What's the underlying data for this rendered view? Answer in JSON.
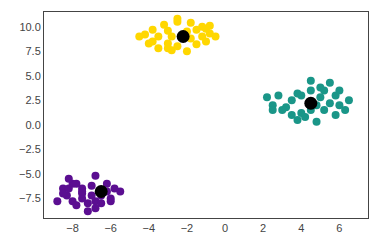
{
  "chart_data": {
    "type": "scatter",
    "series": [
      {
        "color": "#FFD700",
        "marker": "circle",
        "x": [
          -4.2,
          -3.8,
          -3.5,
          -3.0,
          -2.8,
          -2.5,
          -2.0,
          -1.5,
          -1.0,
          -0.8,
          -1.2,
          -1.8,
          -2.5,
          -3.2,
          -3.8,
          -4.5,
          -4.0,
          -3.0,
          -2.2,
          -1.5,
          -0.8,
          -0.5,
          -1.8,
          -2.8,
          -3.5,
          -2.0,
          -1.2,
          -3.0,
          -2.5,
          -1.0
        ],
        "values": [
          9.2,
          8.5,
          7.8,
          8.3,
          7.6,
          8.0,
          7.5,
          8.2,
          8.5,
          9.3,
          10.0,
          10.4,
          10.5,
          10.2,
          9.7,
          9.0,
          8.3,
          9.6,
          9.2,
          9.7,
          10.1,
          9.0,
          8.8,
          9.0,
          9.0,
          9.5,
          9.0,
          7.8,
          10.8,
          9.8
        ]
      },
      {
        "color": "black",
        "marker": "large circle",
        "x": [
          -2.2
        ],
        "values": [
          9.0
        ]
      },
      {
        "color": "#1a9688",
        "marker": "circle",
        "x": [
          2.2,
          2.5,
          2.8,
          3.2,
          3.5,
          3.8,
          4.0,
          4.2,
          4.5,
          4.8,
          5.0,
          5.2,
          5.5,
          5.8,
          6.0,
          6.3,
          6.5,
          5.5,
          5.0,
          4.5,
          4.0,
          3.5,
          3.0,
          4.8,
          5.2,
          6.0,
          4.5,
          3.8,
          5.8,
          2.5
        ],
        "values": [
          2.8,
          2.0,
          3.0,
          1.8,
          2.5,
          3.2,
          1.2,
          0.8,
          1.5,
          2.0,
          2.8,
          1.5,
          2.2,
          3.0,
          2.0,
          1.5,
          2.5,
          4.3,
          3.8,
          3.5,
          3.0,
          1.0,
          1.5,
          0.3,
          3.5,
          3.5,
          4.5,
          0.5,
          1.0,
          1.5
        ]
      },
      {
        "color": "black",
        "marker": "large circle",
        "x": [
          4.5
        ],
        "values": [
          2.2
        ]
      },
      {
        "color": "#5B0E91",
        "marker": "circle",
        "x": [
          -8.5,
          -8.3,
          -8.0,
          -7.8,
          -7.5,
          -7.2,
          -7.0,
          -6.8,
          -6.5,
          -6.2,
          -6.0,
          -5.8,
          -7.5,
          -8.0,
          -8.5,
          -8.8,
          -7.2,
          -6.8,
          -6.5,
          -7.8,
          -7.0,
          -6.2,
          -7.5,
          -8.2,
          -6.8,
          -5.5,
          -8.2,
          -7.5,
          -6.0,
          -6.5
        ],
        "values": [
          -6.5,
          -7.2,
          -7.8,
          -8.2,
          -7.5,
          -8.0,
          -7.2,
          -7.8,
          -7.2,
          -6.8,
          -7.5,
          -6.5,
          -6.5,
          -6.0,
          -7.0,
          -7.8,
          -8.8,
          -8.5,
          -8.0,
          -6.0,
          -6.2,
          -6.0,
          -7.0,
          -6.5,
          -5.2,
          -6.8,
          -5.5,
          -6.8,
          -7.8,
          -6.8
        ]
      },
      {
        "color": "black",
        "marker": "large circle",
        "x": [
          -6.5
        ],
        "values": [
          -6.8
        ]
      }
    ],
    "xlim": [
      -9.5,
      7.5
    ],
    "ylim": [
      -9.5,
      11.5
    ],
    "xticks": [
      -8,
      -6,
      -4,
      -2,
      0,
      2,
      4,
      6
    ],
    "yticks": [
      -7.5,
      {
        "value": -5,
        "label": "−5.0"
      },
      -2.5,
      {
        "value": 0,
        "label": "0.0"
      },
      2.5,
      {
        "value": 5,
        "label": "5.0"
      },
      7.5,
      {
        "value": 10,
        "label": "10.0"
      }
    ],
    "grid": false
  }
}
